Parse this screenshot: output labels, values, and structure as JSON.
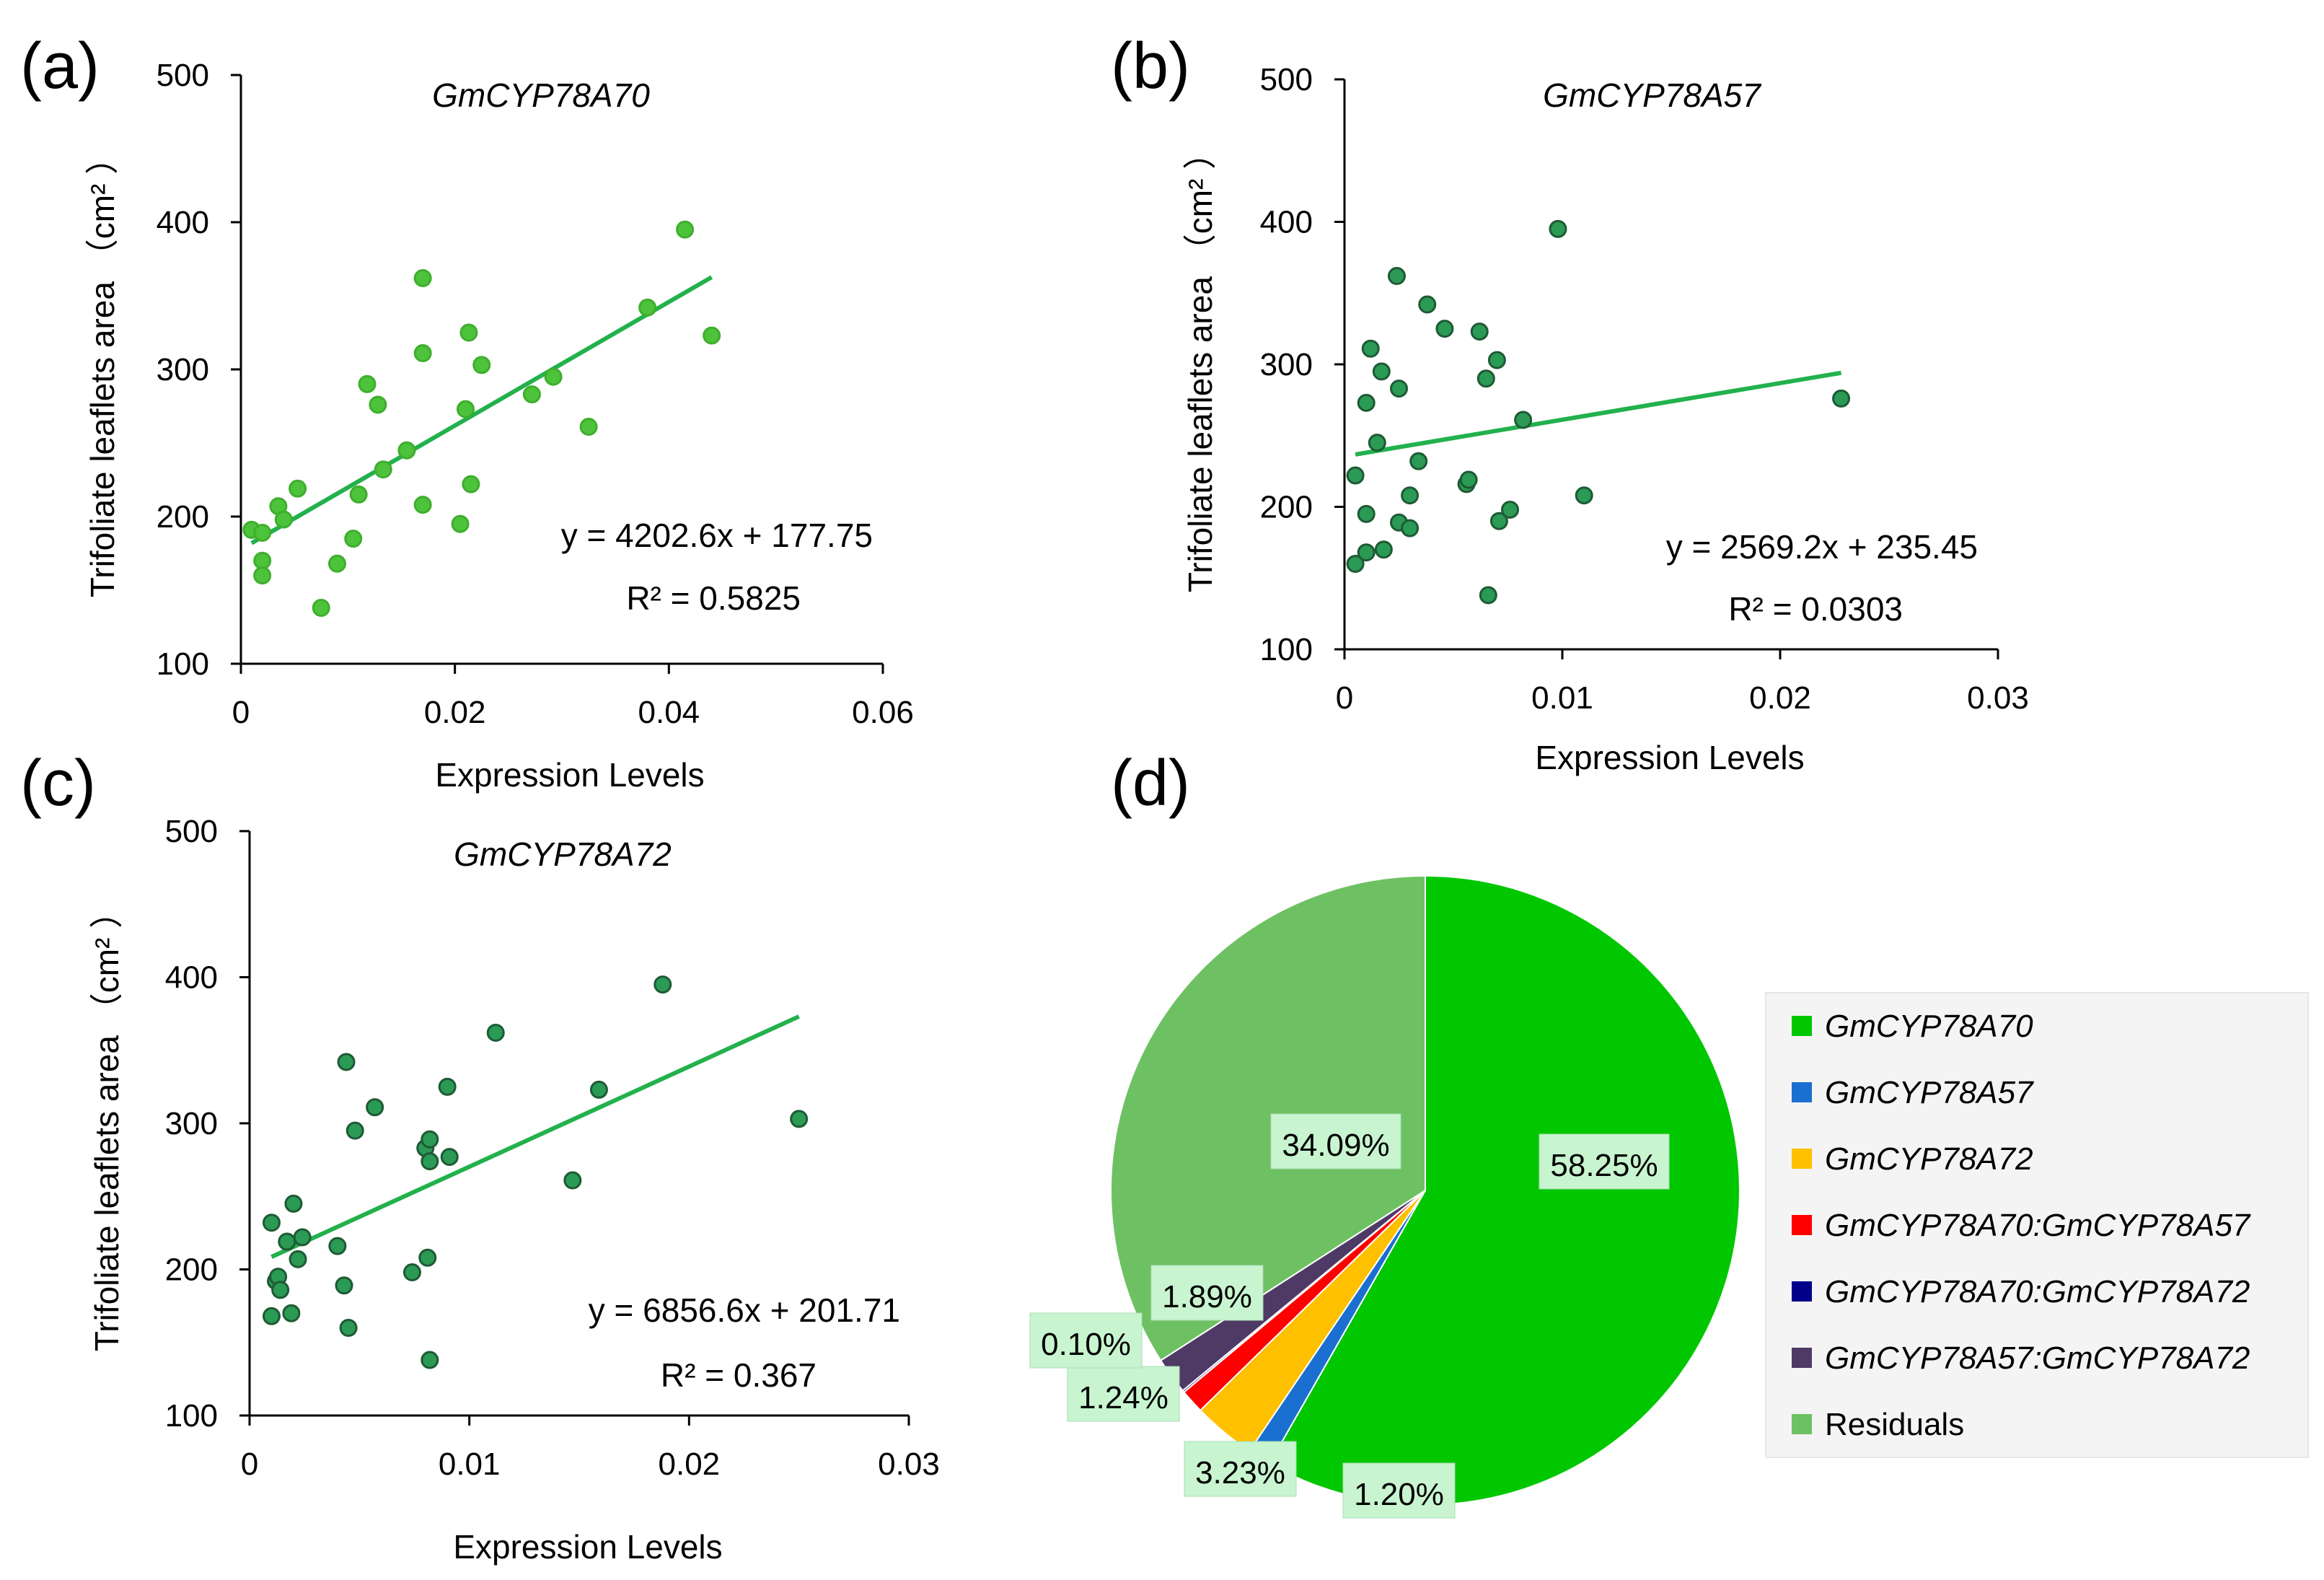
{
  "panels": [
    {
      "label": "(a)"
    },
    {
      "label": "(b)"
    },
    {
      "label": "(c)"
    },
    {
      "label": "(d)"
    }
  ],
  "colors": {
    "scatter_a_fill": "#4cc33a",
    "scatter_a_stroke": "#3fae2e",
    "scatter_bc_fill": "#2a9a55",
    "scatter_bc_stroke": "#1e5a34",
    "trendline": "#22b14c",
    "label_box": "#c8f5d0"
  },
  "chart_data": [
    {
      "type": "scatter",
      "title": "GmCYP78A70",
      "xlabel": "Expression Levels",
      "ylabel": "Trifoliate leaflets area （cm² ）",
      "xlim": [
        0,
        0.06
      ],
      "ylim": [
        100,
        500
      ],
      "xticks": [
        0,
        0.02,
        0.04,
        0.06
      ],
      "xtick_labels": [
        "0",
        "0.02",
        "0.04",
        "0.06"
      ],
      "yticks": [
        100,
        200,
        300,
        400,
        500
      ],
      "ytick_labels": [
        "100",
        "200",
        "300",
        "400",
        "500"
      ],
      "points": [
        [
          0.001,
          191
        ],
        [
          0.002,
          189
        ],
        [
          0.002,
          170
        ],
        [
          0.002,
          160
        ],
        [
          0.0035,
          207
        ],
        [
          0.004,
          198
        ],
        [
          0.0053,
          219
        ],
        [
          0.0075,
          138
        ],
        [
          0.009,
          168
        ],
        [
          0.0105,
          185
        ],
        [
          0.011,
          215
        ],
        [
          0.0118,
          290
        ],
        [
          0.0128,
          276
        ],
        [
          0.0133,
          232
        ],
        [
          0.0155,
          245
        ],
        [
          0.017,
          362
        ],
        [
          0.017,
          311
        ],
        [
          0.017,
          208
        ],
        [
          0.0205,
          195
        ],
        [
          0.021,
          273
        ],
        [
          0.0213,
          325
        ],
        [
          0.0215,
          222
        ],
        [
          0.0225,
          303
        ],
        [
          0.0272,
          283
        ],
        [
          0.0292,
          295
        ],
        [
          0.0325,
          261
        ],
        [
          0.038,
          342
        ],
        [
          0.0415,
          395
        ],
        [
          0.044,
          323
        ]
      ],
      "trendline": {
        "slope": 4202.6,
        "intercept": 177.75,
        "x_range": [
          0.001,
          0.044
        ]
      },
      "equation": "y = 4202.6x + 177.75",
      "r2": "R² = 0.5825"
    },
    {
      "type": "scatter",
      "title": "GmCYP78A57",
      "xlabel": "Expression Levels",
      "ylabel": "Trifoliate leaflets area （cm² ）",
      "xlim": [
        0,
        0.03
      ],
      "ylim": [
        100,
        500
      ],
      "xticks": [
        0,
        0.01,
        0.02,
        0.03
      ],
      "xtick_labels": [
        "0",
        "0.01",
        "0.02",
        "0.03"
      ],
      "yticks": [
        100,
        200,
        300,
        400,
        500
      ],
      "ytick_labels": [
        "100",
        "200",
        "300",
        "400",
        "500"
      ],
      "points": [
        [
          0.0005,
          222
        ],
        [
          0.0005,
          160
        ],
        [
          0.001,
          273
        ],
        [
          0.001,
          195
        ],
        [
          0.001,
          168
        ],
        [
          0.0012,
          311
        ],
        [
          0.0015,
          245
        ],
        [
          0.0017,
          295
        ],
        [
          0.0018,
          170
        ],
        [
          0.0024,
          362
        ],
        [
          0.0025,
          283
        ],
        [
          0.0025,
          189
        ],
        [
          0.003,
          208
        ],
        [
          0.003,
          185
        ],
        [
          0.0034,
          232
        ],
        [
          0.0038,
          342
        ],
        [
          0.0046,
          325
        ],
        [
          0.0056,
          216
        ],
        [
          0.0057,
          219
        ],
        [
          0.0062,
          323
        ],
        [
          0.0065,
          290
        ],
        [
          0.0066,
          138
        ],
        [
          0.007,
          303
        ],
        [
          0.0071,
          190
        ],
        [
          0.0076,
          198
        ],
        [
          0.0082,
          261
        ],
        [
          0.0098,
          395
        ],
        [
          0.011,
          208
        ],
        [
          0.0228,
          276
        ]
      ],
      "trendline": {
        "slope": 2569.2,
        "intercept": 235.45,
        "x_range": [
          0.0005,
          0.0228
        ]
      },
      "equation": "y = 2569.2x + 235.45",
      "r2": "R² = 0.0303"
    },
    {
      "type": "scatter",
      "title": "GmCYP78A72",
      "xlabel": "Expression Levels",
      "ylabel": "Trifoliate leaflets area （cm² ）",
      "xlim": [
        0,
        0.03
      ],
      "ylim": [
        100,
        500
      ],
      "xticks": [
        0,
        0.01,
        0.02,
        0.03
      ],
      "xtick_labels": [
        "0",
        "0.01",
        "0.02",
        "0.03"
      ],
      "yticks": [
        100,
        200,
        300,
        400,
        500
      ],
      "ytick_labels": [
        "100",
        "200",
        "300",
        "400",
        "500"
      ],
      "points": [
        [
          0.001,
          232
        ],
        [
          0.001,
          168
        ],
        [
          0.0012,
          192
        ],
        [
          0.0013,
          195
        ],
        [
          0.0014,
          186
        ],
        [
          0.0017,
          219
        ],
        [
          0.0019,
          170
        ],
        [
          0.002,
          245
        ],
        [
          0.0022,
          207
        ],
        [
          0.0024,
          222
        ],
        [
          0.004,
          216
        ],
        [
          0.0043,
          189
        ],
        [
          0.0044,
          342
        ],
        [
          0.0045,
          160
        ],
        [
          0.0048,
          295
        ],
        [
          0.0057,
          311
        ],
        [
          0.0074,
          198
        ],
        [
          0.008,
          283
        ],
        [
          0.0081,
          208
        ],
        [
          0.0082,
          274
        ],
        [
          0.0082,
          289
        ],
        [
          0.0082,
          138
        ],
        [
          0.009,
          325
        ],
        [
          0.0091,
          277
        ],
        [
          0.0112,
          362
        ],
        [
          0.0147,
          261
        ],
        [
          0.0159,
          323
        ],
        [
          0.0188,
          395
        ],
        [
          0.025,
          303
        ]
      ],
      "trendline": {
        "slope": 6856.6,
        "intercept": 201.71,
        "x_range": [
          0.001,
          0.025
        ]
      },
      "equation": "y = 6856.6x + 201.71",
      "r2": "R² = 0.367"
    },
    {
      "type": "pie",
      "slices": [
        {
          "name": "GmCYP78A70",
          "value": 58.25,
          "label": "58.25%",
          "color": "#00c700"
        },
        {
          "name": "GmCYP78A57",
          "value": 1.2,
          "label": "1.20%",
          "color": "#1a6fd0"
        },
        {
          "name": "GmCYP78A72",
          "value": 3.23,
          "label": "3.23%",
          "color": "#ffc000"
        },
        {
          "name": "GmCYP78A70:GmCYP78A57",
          "value": 1.24,
          "label": "1.24%",
          "color": "#ff0000"
        },
        {
          "name": "GmCYP78A70:GmCYP78A72",
          "value": 0.1,
          "label": "0.10%",
          "color": "#00008b"
        },
        {
          "name": "GmCYP78A57:GmCYP78A72",
          "value": 1.89,
          "label": "1.89%",
          "color": "#4f3a66"
        },
        {
          "name": "Residuals",
          "value": 34.09,
          "label": "34.09%",
          "color": "#6ec162"
        }
      ],
      "legend": {
        "position": "right",
        "entries": [
          {
            "text": "GmCYP78A70",
            "italic": true
          },
          {
            "text": "GmCYP78A57",
            "italic": true
          },
          {
            "text": "GmCYP78A72",
            "italic": true
          },
          {
            "text": "GmCYP78A70:GmCYP78A57",
            "italic": true
          },
          {
            "text": "GmCYP78A70:GmCYP78A72",
            "italic": true
          },
          {
            "text": "GmCYP78A57:GmCYP78A72",
            "italic": true
          },
          {
            "text": "Residuals",
            "italic": false
          }
        ]
      }
    }
  ]
}
